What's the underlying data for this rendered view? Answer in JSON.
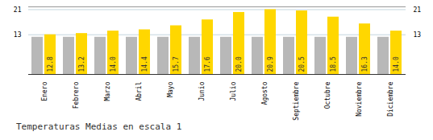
{
  "chart_data": {
    "type": "bar",
    "title": "Temperaturas Medias en escala 1",
    "categories": [
      "Enero",
      "Febrero",
      "Marzo",
      "Abril",
      "Mayo",
      "Junio",
      "Julio",
      "Agosto",
      "Septiembre",
      "Octubre",
      "Noviembre",
      "Diciembre"
    ],
    "series": [
      {
        "color": "#B8B8B8",
        "values": [
          12.0,
          12.0,
          12.0,
          12.0,
          12.0,
          12.0,
          12.0,
          12.0,
          12.0,
          12.0,
          12.0,
          12.0
        ]
      },
      {
        "color": "#FFD700",
        "values": [
          12.8,
          13.2,
          14.0,
          14.4,
          15.7,
          17.6,
          20.0,
          20.9,
          20.5,
          18.5,
          16.3,
          14.0
        ],
        "value_labels": [
          "12.8",
          "13.2",
          "14.0",
          "14.4",
          "15.7",
          "17.6",
          "20.0",
          "20.9",
          "20.5",
          "18.5",
          "16.3",
          "14.0"
        ]
      }
    ],
    "ylim": [
      0,
      21.8
    ],
    "yticks": [
      12.8,
      20.9
    ],
    "grid": true,
    "data_labels": true
  }
}
